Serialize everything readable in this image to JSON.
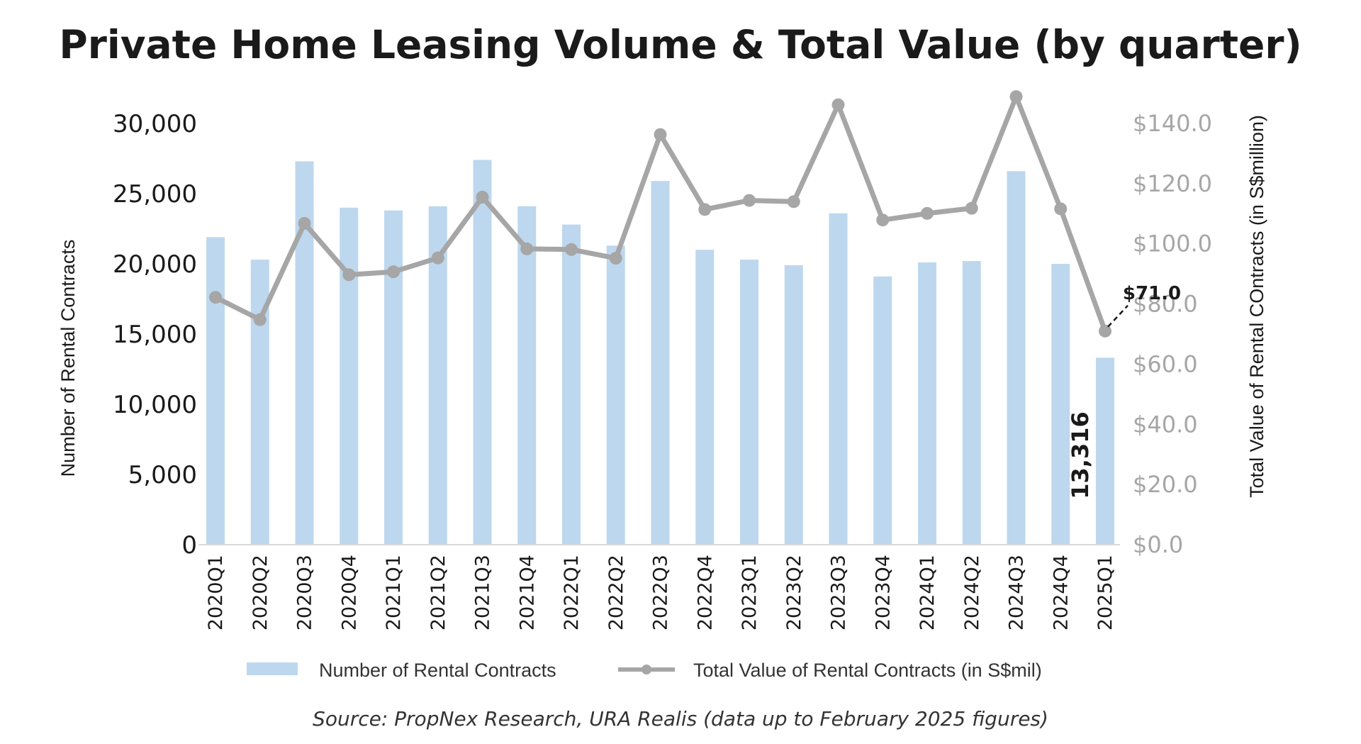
{
  "chart_data": {
    "type": "bar",
    "title": "Private Home Leasing Volume & Total Value (by quarter)",
    "categories": [
      "2020Q1",
      "2020Q2",
      "2020Q3",
      "2020Q4",
      "2021Q1",
      "2021Q2",
      "2021Q3",
      "2021Q4",
      "2022Q1",
      "2022Q2",
      "2022Q3",
      "2022Q4",
      "2023Q1",
      "2023Q2",
      "2023Q3",
      "2023Q4",
      "2024Q1",
      "2024Q2",
      "2024Q3",
      "2024Q4",
      "2025Q1"
    ],
    "series": [
      {
        "name": "Number of Rental Contracts",
        "type": "bar",
        "axis": "left",
        "color": "#bdd7ee",
        "values": [
          21900,
          20300,
          27300,
          24000,
          23800,
          24100,
          27400,
          24100,
          22800,
          21300,
          25900,
          21000,
          20300,
          19900,
          23600,
          19100,
          20100,
          20200,
          26600,
          20000,
          13316
        ]
      },
      {
        "name": "Total Value of Rental Contracts (in S$mil)",
        "type": "line",
        "axis": "right",
        "color": "#a6a6a6",
        "values": [
          82.2,
          74.8,
          106.8,
          89.7,
          90.7,
          95.3,
          115.5,
          98.3,
          98.1,
          95.2,
          136.3,
          111.4,
          114.4,
          114.0,
          146.2,
          107.9,
          110.1,
          111.8,
          148.9,
          111.6,
          71.0
        ]
      }
    ],
    "ylabel": "Number of Rental Contracts",
    "ylim": [
      0,
      30000
    ],
    "yticks": [
      "30,000",
      "25,000",
      "20,000",
      "15,000",
      "10,000",
      "5,000",
      "0"
    ],
    "y2label": "Total Value of Rental COntracts (in S$million)",
    "y2lim": [
      0,
      140
    ],
    "y2ticks": [
      "$140.0",
      "$120.0",
      "$100.0",
      "$80.0",
      "$60.0",
      "$40.0",
      "$20.0",
      "$0.0"
    ],
    "annotations": {
      "last_value_label": "$71.0",
      "last_bar_label": "13,316"
    },
    "legend": {
      "position": "bottom",
      "bar_label": "Number of Rental Contracts",
      "line_label": "Total Value of Rental Contracts (in S$mil)"
    },
    "source": "Source: PropNex Research, URA Realis (data up to February 2025 figures)"
  },
  "colors": {
    "bar": "#bdd7ee",
    "line": "#a6a6a6",
    "axis": "#d9d9d9",
    "text": "#1a1a1a",
    "right_axis_text": "#a6a6a6"
  }
}
